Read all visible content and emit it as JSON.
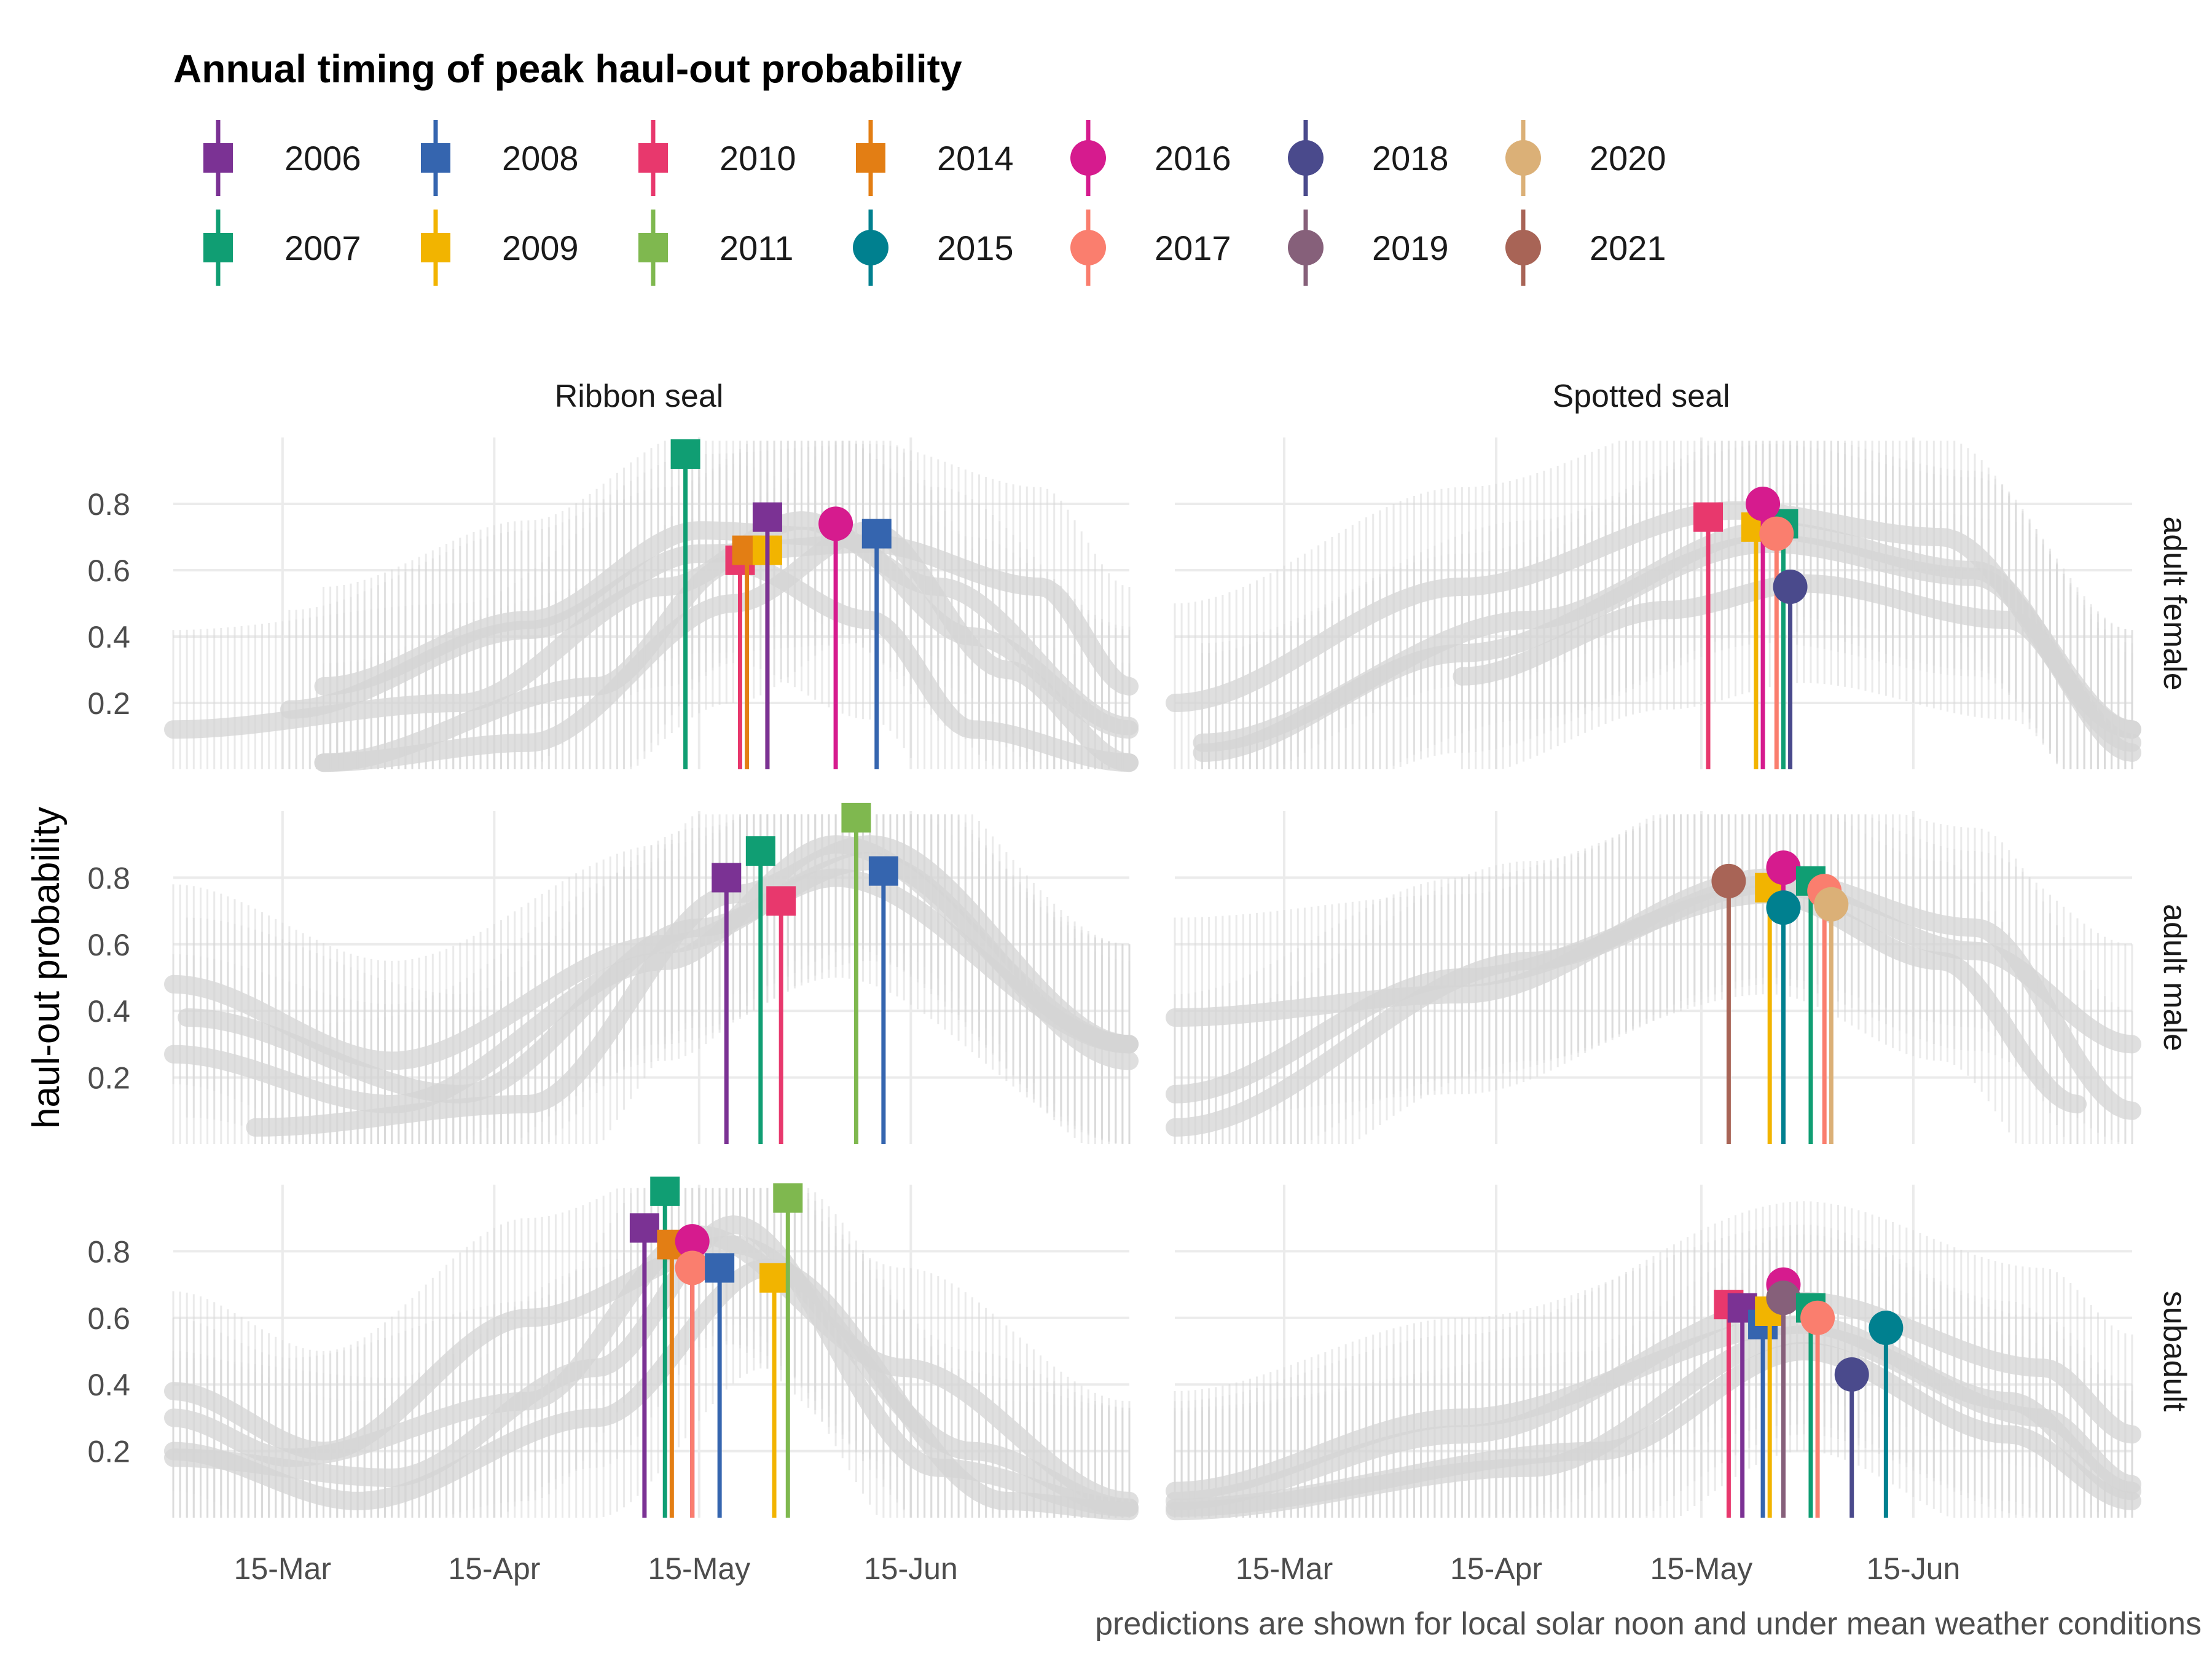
{
  "chart_data": {
    "type": "line",
    "title": "Annual timing of peak haul-out probability",
    "ylabel": "haul-out probability",
    "caption": "predictions are shown for local solar noon and under mean weather conditions",
    "columns": [
      "Ribbon seal",
      "Spotted seal"
    ],
    "rows": [
      "adult female",
      "adult male",
      "subadult"
    ],
    "x_ticks": [
      {
        "label": "15-Mar",
        "day": 74
      },
      {
        "label": "15-Apr",
        "day": 105
      },
      {
        "label": "15-May",
        "day": 135
      },
      {
        "label": "15-Jun",
        "day": 166
      }
    ],
    "y_ticks": [
      "0.2",
      "0.4",
      "0.6",
      "0.8"
    ],
    "xlim": [
      58,
      198
    ],
    "ylim": [
      0,
      1
    ],
    "legend": [
      {
        "year": "2006",
        "color": "#7B3294",
        "shape": "square"
      },
      {
        "year": "2007",
        "color": "#109E73",
        "shape": "square"
      },
      {
        "year": "2008",
        "color": "#3565AF",
        "shape": "square"
      },
      {
        "year": "2009",
        "color": "#F2B400",
        "shape": "square"
      },
      {
        "year": "2010",
        "color": "#E8386D",
        "shape": "square"
      },
      {
        "year": "2011",
        "color": "#7FB84F",
        "shape": "square"
      },
      {
        "year": "2014",
        "color": "#E37E14",
        "shape": "square"
      },
      {
        "year": "2015",
        "color": "#00808F",
        "shape": "circle"
      },
      {
        "year": "2016",
        "color": "#D61B8E",
        "shape": "circle"
      },
      {
        "year": "2017",
        "color": "#FA7E6E",
        "shape": "circle"
      },
      {
        "year": "2018",
        "color": "#4A4A8C",
        "shape": "circle"
      },
      {
        "year": "2019",
        "color": "#86607A",
        "shape": "circle"
      },
      {
        "year": "2020",
        "color": "#DBB077",
        "shape": "circle"
      },
      {
        "year": "2021",
        "color": "#A86456",
        "shape": "circle"
      }
    ],
    "panels": [
      {
        "species": "Ribbon seal",
        "group": "adult female",
        "peaks": [
          {
            "year": "2007",
            "day": 133,
            "p": 0.95
          },
          {
            "year": "2010",
            "day": 141,
            "p": 0.63
          },
          {
            "year": "2014",
            "day": 142,
            "p": 0.66
          },
          {
            "year": "2009",
            "day": 145,
            "p": 0.66
          },
          {
            "year": "2006",
            "day": 145,
            "p": 0.76
          },
          {
            "year": "2016",
            "day": 155,
            "p": 0.74
          },
          {
            "year": "2008",
            "day": 161,
            "p": 0.71
          }
        ]
      },
      {
        "species": "Spotted seal",
        "group": "adult female",
        "peaks": [
          {
            "year": "2010",
            "day": 136,
            "p": 0.76
          },
          {
            "year": "2009",
            "day": 143,
            "p": 0.73
          },
          {
            "year": "2007",
            "day": 147,
            "p": 0.74
          },
          {
            "year": "2016",
            "day": 144,
            "p": 0.8
          },
          {
            "year": "2017",
            "day": 146,
            "p": 0.71
          },
          {
            "year": "2018",
            "day": 148,
            "p": 0.55
          }
        ]
      },
      {
        "species": "Ribbon seal",
        "group": "adult male",
        "peaks": [
          {
            "year": "2006",
            "day": 139,
            "p": 0.8
          },
          {
            "year": "2007",
            "day": 144,
            "p": 0.88
          },
          {
            "year": "2010",
            "day": 147,
            "p": 0.73
          },
          {
            "year": "2011",
            "day": 158,
            "p": 0.98
          },
          {
            "year": "2008",
            "day": 162,
            "p": 0.82
          }
        ]
      },
      {
        "species": "Spotted seal",
        "group": "adult male",
        "peaks": [
          {
            "year": "2021",
            "day": 139,
            "p": 0.79
          },
          {
            "year": "2009",
            "day": 145,
            "p": 0.77
          },
          {
            "year": "2016",
            "day": 147,
            "p": 0.83
          },
          {
            "year": "2015",
            "day": 147,
            "p": 0.71
          },
          {
            "year": "2007",
            "day": 151,
            "p": 0.79
          },
          {
            "year": "2017",
            "day": 153,
            "p": 0.76
          },
          {
            "year": "2020",
            "day": 154,
            "p": 0.72
          }
        ]
      },
      {
        "species": "Ribbon seal",
        "group": "subadult",
        "peaks": [
          {
            "year": "2006",
            "day": 127,
            "p": 0.87
          },
          {
            "year": "2007",
            "day": 130,
            "p": 0.98
          },
          {
            "year": "2014",
            "day": 131,
            "p": 0.82
          },
          {
            "year": "2016",
            "day": 134,
            "p": 0.83
          },
          {
            "year": "2017",
            "day": 134,
            "p": 0.75
          },
          {
            "year": "2008",
            "day": 138,
            "p": 0.75
          },
          {
            "year": "2009",
            "day": 146,
            "p": 0.72
          },
          {
            "year": "2011",
            "day": 148,
            "p": 0.96
          }
        ]
      },
      {
        "species": "Spotted seal",
        "group": "subadult",
        "peaks": [
          {
            "year": "2010",
            "day": 139,
            "p": 0.64
          },
          {
            "year": "2006",
            "day": 141,
            "p": 0.63
          },
          {
            "year": "2008",
            "day": 144,
            "p": 0.58
          },
          {
            "year": "2009",
            "day": 145,
            "p": 0.62
          },
          {
            "year": "2016",
            "day": 147,
            "p": 0.7
          },
          {
            "year": "2019",
            "day": 147,
            "p": 0.66
          },
          {
            "year": "2007",
            "day": 151,
            "p": 0.63
          },
          {
            "year": "2017",
            "day": 152,
            "p": 0.6
          },
          {
            "year": "2018",
            "day": 157,
            "p": 0.43
          },
          {
            "year": "2015",
            "day": 162,
            "p": 0.57
          }
        ]
      }
    ],
    "background_curves": [
      {
        "species": "Ribbon seal",
        "group": "adult female",
        "curves": [
          {
            "x": [
              58,
              100,
              130,
              150,
              170,
              198
            ],
            "y": [
              0.12,
              0.2,
              0.55,
              0.75,
              0.55,
              0.13
            ]
          },
          {
            "x": [
              80,
              110,
              135,
              155,
              175,
              198
            ],
            "y": [
              0.25,
              0.45,
              0.72,
              0.7,
              0.4,
              0.12
            ]
          },
          {
            "x": [
              80,
              110,
              140,
              160,
              180,
              198
            ],
            "y": [
              0.02,
              0.08,
              0.5,
              0.72,
              0.3,
              0.02
            ]
          },
          {
            "x": [
              80,
              120,
              140,
              160,
              175,
              198
            ],
            "y": [
              0.02,
              0.25,
              0.62,
              0.45,
              0.12,
              0.02
            ]
          },
          {
            "x": [
              75,
              110,
              135,
              160,
              185,
              198
            ],
            "y": [
              0.18,
              0.42,
              0.65,
              0.68,
              0.55,
              0.25
            ]
          }
        ]
      },
      {
        "species": "Spotted seal",
        "group": "adult female",
        "curves": [
          {
            "x": [
              58,
              100,
              140,
              170,
              198
            ],
            "y": [
              0.2,
              0.55,
              0.78,
              0.7,
              0.12
            ]
          },
          {
            "x": [
              62,
              110,
              145,
              175,
              198
            ],
            "y": [
              0.08,
              0.45,
              0.72,
              0.6,
              0.08
            ]
          },
          {
            "x": [
              62,
              100,
              145,
              175,
              198
            ],
            "y": [
              0.05,
              0.35,
              0.68,
              0.58,
              0.12
            ]
          },
          {
            "x": [
              100,
              130,
              150,
              180,
              198
            ],
            "y": [
              0.28,
              0.48,
              0.56,
              0.45,
              0.05
            ]
          }
        ]
      },
      {
        "species": "Ribbon seal",
        "group": "adult male",
        "curves": [
          {
            "x": [
              58,
              90,
              130,
              160,
              198
            ],
            "y": [
              0.48,
              0.25,
              0.6,
              0.85,
              0.25
            ]
          },
          {
            "x": [
              58,
              90,
              130,
              155,
              198
            ],
            "y": [
              0.27,
              0.12,
              0.55,
              0.9,
              0.3
            ]
          },
          {
            "x": [
              70,
              110,
              140,
              160,
              198
            ],
            "y": [
              0.05,
              0.12,
              0.75,
              0.9,
              0.3
            ]
          },
          {
            "x": [
              60,
              100,
              135,
              155,
              198
            ],
            "y": [
              0.38,
              0.15,
              0.65,
              0.8,
              0.3
            ]
          }
        ]
      },
      {
        "species": "Spotted seal",
        "group": "adult male",
        "curves": [
          {
            "x": [
              58,
              100,
              145,
              175,
              198
            ],
            "y": [
              0.38,
              0.45,
              0.8,
              0.65,
              0.1
            ]
          },
          {
            "x": [
              58,
              110,
              145,
              175,
              198
            ],
            "y": [
              0.05,
              0.55,
              0.78,
              0.58,
              0.3
            ]
          },
          {
            "x": [
              58,
              100,
              145,
              170,
              190
            ],
            "y": [
              0.15,
              0.5,
              0.75,
              0.55,
              0.12
            ]
          }
        ]
      },
      {
        "species": "Ribbon seal",
        "group": "subadult",
        "curves": [
          {
            "x": [
              58,
              75,
              110,
              135,
              165,
              198
            ],
            "y": [
              0.3,
              0.18,
              0.35,
              0.85,
              0.45,
              0.05
            ]
          },
          {
            "x": [
              58,
              90,
              120,
              140,
              170,
              198
            ],
            "y": [
              0.18,
              0.12,
              0.45,
              0.88,
              0.15,
              0.03
            ]
          },
          {
            "x": [
              58,
              80,
              110,
              140,
              175,
              198
            ],
            "y": [
              0.38,
              0.2,
              0.6,
              0.82,
              0.2,
              0.03
            ]
          },
          {
            "x": [
              58,
              85,
              120,
              145,
              180,
              198
            ],
            "y": [
              0.2,
              0.05,
              0.3,
              0.75,
              0.05,
              0.02
            ]
          }
        ]
      },
      {
        "species": "Spotted seal",
        "group": "subadult",
        "curves": [
          {
            "x": [
              58,
              100,
              150,
              185,
              198
            ],
            "y": [
              0.05,
              0.25,
              0.65,
              0.45,
              0.25
            ]
          },
          {
            "x": [
              58,
              110,
              150,
              185,
              198
            ],
            "y": [
              0.02,
              0.15,
              0.55,
              0.3,
              0.1
            ]
          },
          {
            "x": [
              58,
              100,
              150,
              180,
              198
            ],
            "y": [
              0.08,
              0.3,
              0.58,
              0.35,
              0.08
            ]
          },
          {
            "x": [
              58,
              120,
              150,
              180,
              198
            ],
            "y": [
              0.03,
              0.2,
              0.5,
              0.25,
              0.05
            ]
          }
        ]
      }
    ]
  }
}
